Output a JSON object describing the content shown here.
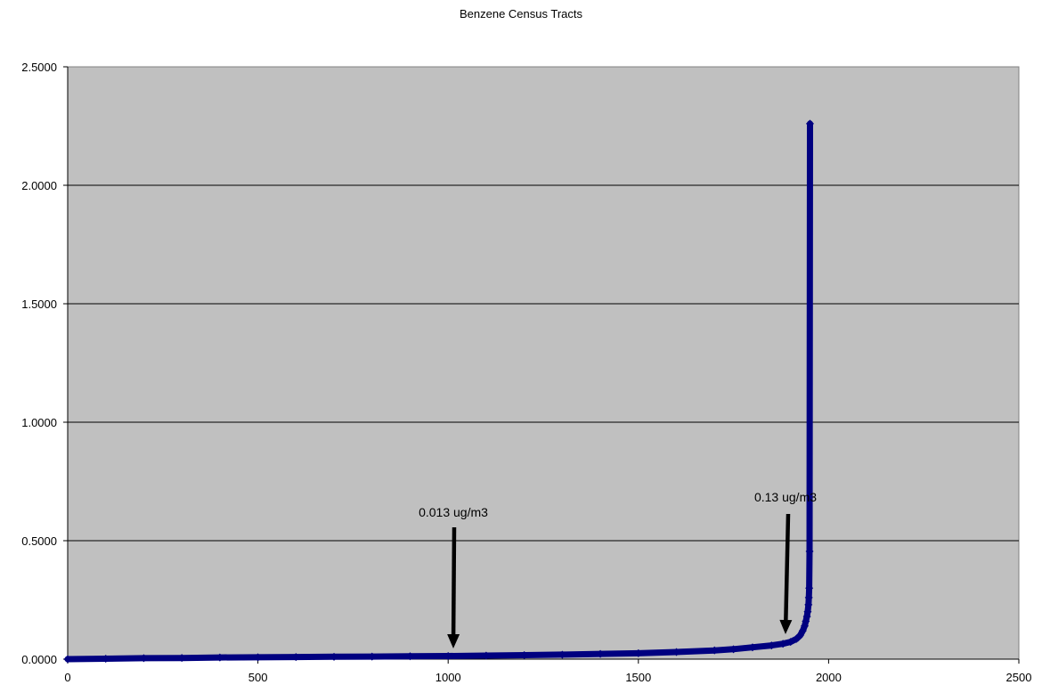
{
  "chart_data": {
    "type": "scatter",
    "title": "Benzene Census Tracts",
    "xlabel": "",
    "ylabel": "",
    "xlim": [
      0,
      2500
    ],
    "ylim": [
      0,
      2.5
    ],
    "x_ticks": [
      "0",
      "500",
      "1000",
      "1500",
      "2000",
      "2500"
    ],
    "y_ticks": [
      "0.0000",
      "0.5000",
      "1.0000",
      "1.5000",
      "2.0000",
      "2.5000"
    ],
    "grid": "horizontal",
    "legend": "none",
    "colors": {
      "plot_bg": "#c0c0c0",
      "marker": "#000080",
      "grid": "#000000"
    },
    "series": [
      {
        "points": [
          [
            0,
            0.0
          ],
          [
            100,
            0.002
          ],
          [
            200,
            0.004
          ],
          [
            300,
            0.005
          ],
          [
            400,
            0.007
          ],
          [
            500,
            0.008
          ],
          [
            600,
            0.009
          ],
          [
            700,
            0.01
          ],
          [
            800,
            0.011
          ],
          [
            900,
            0.012
          ],
          [
            1000,
            0.013
          ],
          [
            1100,
            0.015
          ],
          [
            1200,
            0.017
          ],
          [
            1300,
            0.019
          ],
          [
            1400,
            0.022
          ],
          [
            1500,
            0.025
          ],
          [
            1600,
            0.03
          ],
          [
            1700,
            0.037
          ],
          [
            1750,
            0.042
          ],
          [
            1800,
            0.05
          ],
          [
            1850,
            0.058
          ],
          [
            1880,
            0.065
          ],
          [
            1900,
            0.073
          ],
          [
            1915,
            0.085
          ],
          [
            1925,
            0.1
          ],
          [
            1932,
            0.12
          ],
          [
            1937,
            0.14
          ],
          [
            1940,
            0.16
          ],
          [
            1943,
            0.18
          ],
          [
            1945,
            0.2
          ],
          [
            1947,
            0.23
          ],
          [
            1948,
            0.26
          ],
          [
            1949,
            0.3
          ],
          [
            1950,
            0.455
          ],
          [
            1951,
            2.26
          ]
        ]
      }
    ],
    "annotations": [
      {
        "text": "0.013 ug/m3",
        "x": 1013,
        "y": 0.013
      },
      {
        "text": "0.13 ug/m3",
        "x": 1895,
        "y": 0.13
      }
    ]
  }
}
